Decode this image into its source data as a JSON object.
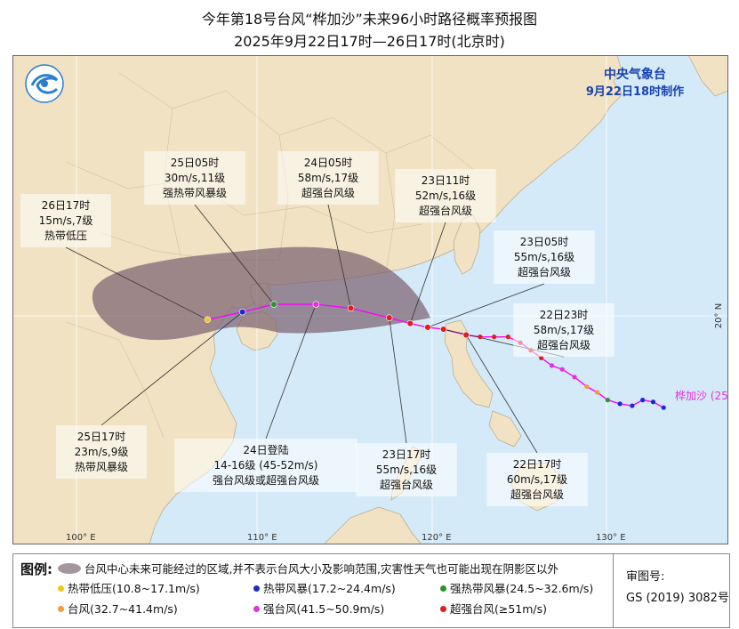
{
  "title": {
    "line1": "今年第18号台风“桦加沙”未来96小时路径概率预报图",
    "line2": "2025年9月22日17时—26日17时(北京时)"
  },
  "agency": {
    "name": "中央气象台",
    "made": "9月22日18时制作"
  },
  "typhoon_label": "桦加沙 (25",
  "axes": {
    "lon_ticks": [
      "100° E",
      "110° E",
      "120° E",
      "130° E"
    ],
    "lat_ticks": [
      "20° N"
    ]
  },
  "colors": {
    "land": "#f0e2c2",
    "sea": "#d4eaf8",
    "cone": "#7d6371",
    "track": "#ff00ff",
    "tropical_depression": "#f4c419",
    "tropical_storm": "#1a2bd0",
    "severe_tropical_storm": "#28962a",
    "typhoon": "#f79a3a",
    "severe_typhoon": "#e233d9",
    "super_typhoon": "#dc2020"
  },
  "forecast_points": [
    {
      "id": "p26-17",
      "lines": [
        "26日17时",
        "15m/s,7级",
        "热带低压"
      ],
      "lon": 107.5,
      "lat": 19.8,
      "category": "tropical_depression"
    },
    {
      "id": "p25-17",
      "lines": [
        "25日17时",
        "23m/s,9级",
        "热带风暴级"
      ],
      "lon": 109.5,
      "lat": 20.2,
      "category": "tropical_storm"
    },
    {
      "id": "p25-05",
      "lines": [
        "25日05时",
        "30m/s,11级",
        "强热带风暴级"
      ],
      "lon": 111.3,
      "lat": 20.6,
      "category": "severe_tropical_storm"
    },
    {
      "id": "p24-landfall",
      "lines": [
        "24日登陆",
        "14-16级 (45-52m/s)",
        "强台风级或超强台风级"
      ],
      "lon": 113.7,
      "lat": 20.6,
      "category": "severe_typhoon"
    },
    {
      "id": "p24-05",
      "lines": [
        "24日05时",
        "58m/s,17级",
        "超强台风级"
      ],
      "lon": 115.7,
      "lat": 20.4,
      "category": "super_typhoon"
    },
    {
      "id": "p23-17",
      "lines": [
        "23日17时",
        "55m/s,16级",
        "超强台风级"
      ],
      "lon": 117.9,
      "lat": 19.9,
      "category": "super_typhoon"
    },
    {
      "id": "p23-11",
      "lines": [
        "23日11时",
        "52m/s,16级",
        "超强台风级"
      ],
      "lon": 119.1,
      "lat": 19.6,
      "category": "super_typhoon"
    },
    {
      "id": "p23-05",
      "lines": [
        "23日05时",
        "55m/s,16级",
        "超强台风级"
      ],
      "lon": 120.1,
      "lat": 19.4,
      "category": "super_typhoon"
    },
    {
      "id": "p22-23",
      "lines": [
        "22日23时",
        "58m/s,17级",
        "超强台风级"
      ],
      "lon": 121.0,
      "lat": 19.3,
      "category": "super_typhoon"
    },
    {
      "id": "p22-17",
      "lines": [
        "22日17时",
        "60m/s,17级",
        "超强台风级"
      ],
      "lon": 122.3,
      "lat": 19.0,
      "category": "super_typhoon"
    }
  ],
  "history_track": [
    {
      "lon": 122.3,
      "lat": 19.0,
      "category": "super_typhoon"
    },
    {
      "lon": 123.1,
      "lat": 18.9,
      "category": "super_typhoon"
    },
    {
      "lon": 123.9,
      "lat": 18.9,
      "category": "super_typhoon"
    },
    {
      "lon": 124.7,
      "lat": 18.9,
      "category": "super_typhoon"
    },
    {
      "lon": 125.4,
      "lat": 18.6,
      "category": "super_typhoon"
    },
    {
      "lon": 126.0,
      "lat": 18.2,
      "category": "super_typhoon"
    },
    {
      "lon": 126.6,
      "lat": 17.8,
      "category": "super_typhoon"
    },
    {
      "lon": 127.2,
      "lat": 17.4,
      "category": "severe_typhoon"
    },
    {
      "lon": 127.8,
      "lat": 17.2,
      "category": "severe_typhoon"
    },
    {
      "lon": 128.5,
      "lat": 16.8,
      "category": "severe_typhoon"
    },
    {
      "lon": 129.2,
      "lat": 16.3,
      "category": "typhoon"
    },
    {
      "lon": 129.8,
      "lat": 16.0,
      "category": "typhoon"
    },
    {
      "lon": 130.4,
      "lat": 15.6,
      "category": "severe_tropical_storm"
    },
    {
      "lon": 131.1,
      "lat": 15.4,
      "category": "tropical_storm"
    },
    {
      "lon": 131.8,
      "lat": 15.3,
      "category": "tropical_storm"
    },
    {
      "lon": 132.4,
      "lat": 15.6,
      "category": "tropical_storm"
    },
    {
      "lon": 133.0,
      "lat": 15.5,
      "category": "tropical_storm"
    },
    {
      "lon": 133.6,
      "lat": 15.2,
      "category": "tropical_storm"
    }
  ],
  "legend": {
    "title": "图例:",
    "area_text": "台风中心未来可能经过的区域,并不表示台风大小及影响范围,灾害性天气也可能出现在阴影区以外",
    "items": [
      {
        "label": "热带低压(10.8~17.1m/s)",
        "category": "tropical_depression"
      },
      {
        "label": "热带风暴(17.2~24.4m/s)",
        "category": "tropical_storm"
      },
      {
        "label": "强热带风暴(24.5~32.6m/s)",
        "category": "severe_tropical_storm"
      },
      {
        "label": "台风(32.7~41.4m/s)",
        "category": "typhoon"
      },
      {
        "label": "强台风(41.5~50.9m/s)",
        "category": "severe_typhoon"
      },
      {
        "label": "超强台风(≥51m/s)",
        "category": "super_typhoon"
      }
    ],
    "approval_label": "审图号:",
    "approval_number": "GS (2019) 3082号"
  }
}
